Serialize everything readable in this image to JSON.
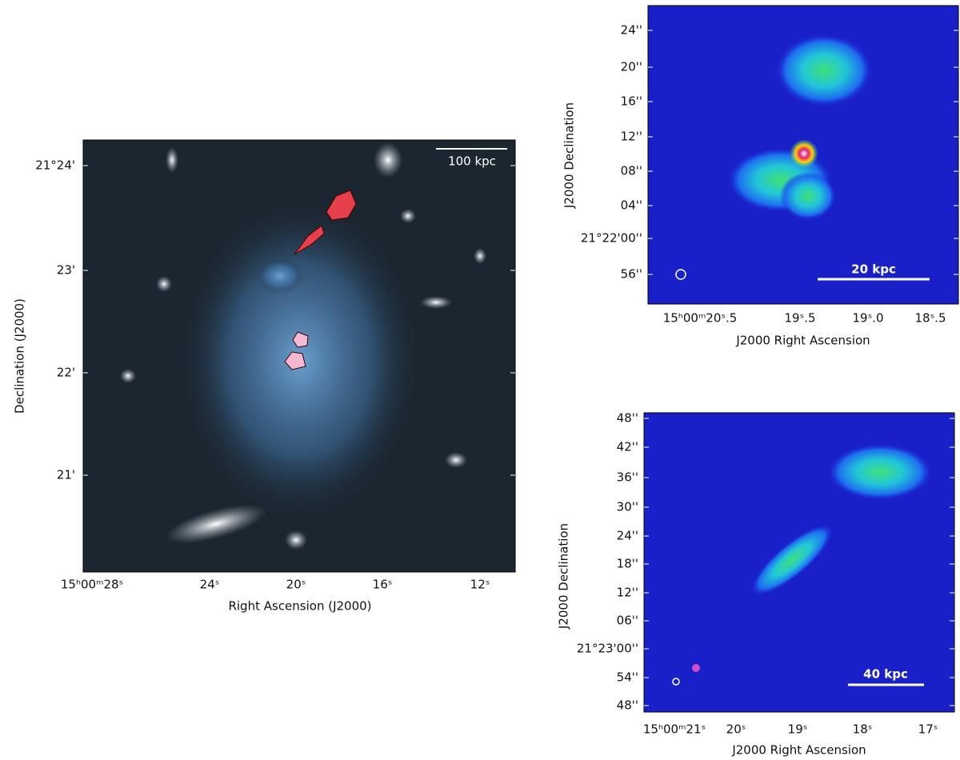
{
  "panels": [
    {
      "xlabel": "Right Ascension (J2000)",
      "ylabel": "Declination (J2000)",
      "scalebar": "100 kpc",
      "xticks": [
        "15ʰ00ᵐ28ˢ",
        "24ˢ",
        "20ˢ",
        "16ˢ",
        "12ˢ"
      ],
      "yticks": [
        "21°24'",
        "23'",
        "22'",
        "21'"
      ]
    },
    {
      "xlabel": "J2000 Right Ascension",
      "ylabel": "J2000 Declination",
      "scalebar": "20 kpc",
      "xticks": [
        "15ʰ00ᵐ20ˢ.5",
        "19ˢ.5",
        "19ˢ.0",
        "18ˢ.5"
      ],
      "yticks": [
        "24''",
        "20''",
        "16''",
        "12''",
        "08''",
        "04''",
        "21°22'00''",
        "56''"
      ]
    },
    {
      "xlabel": "J2000 Right Ascension",
      "ylabel": "J2000 Declination",
      "scalebar": "40 kpc",
      "xticks": [
        "15ʰ00ᵐ21ˢ",
        "20ˢ",
        "19ˢ",
        "18ˢ",
        "17ˢ"
      ],
      "yticks": [
        "48''",
        "42''",
        "36''",
        "30''",
        "24''",
        "18''",
        "12''",
        "06''",
        "21°23'00''",
        "54''",
        "48''"
      ]
    }
  ]
}
